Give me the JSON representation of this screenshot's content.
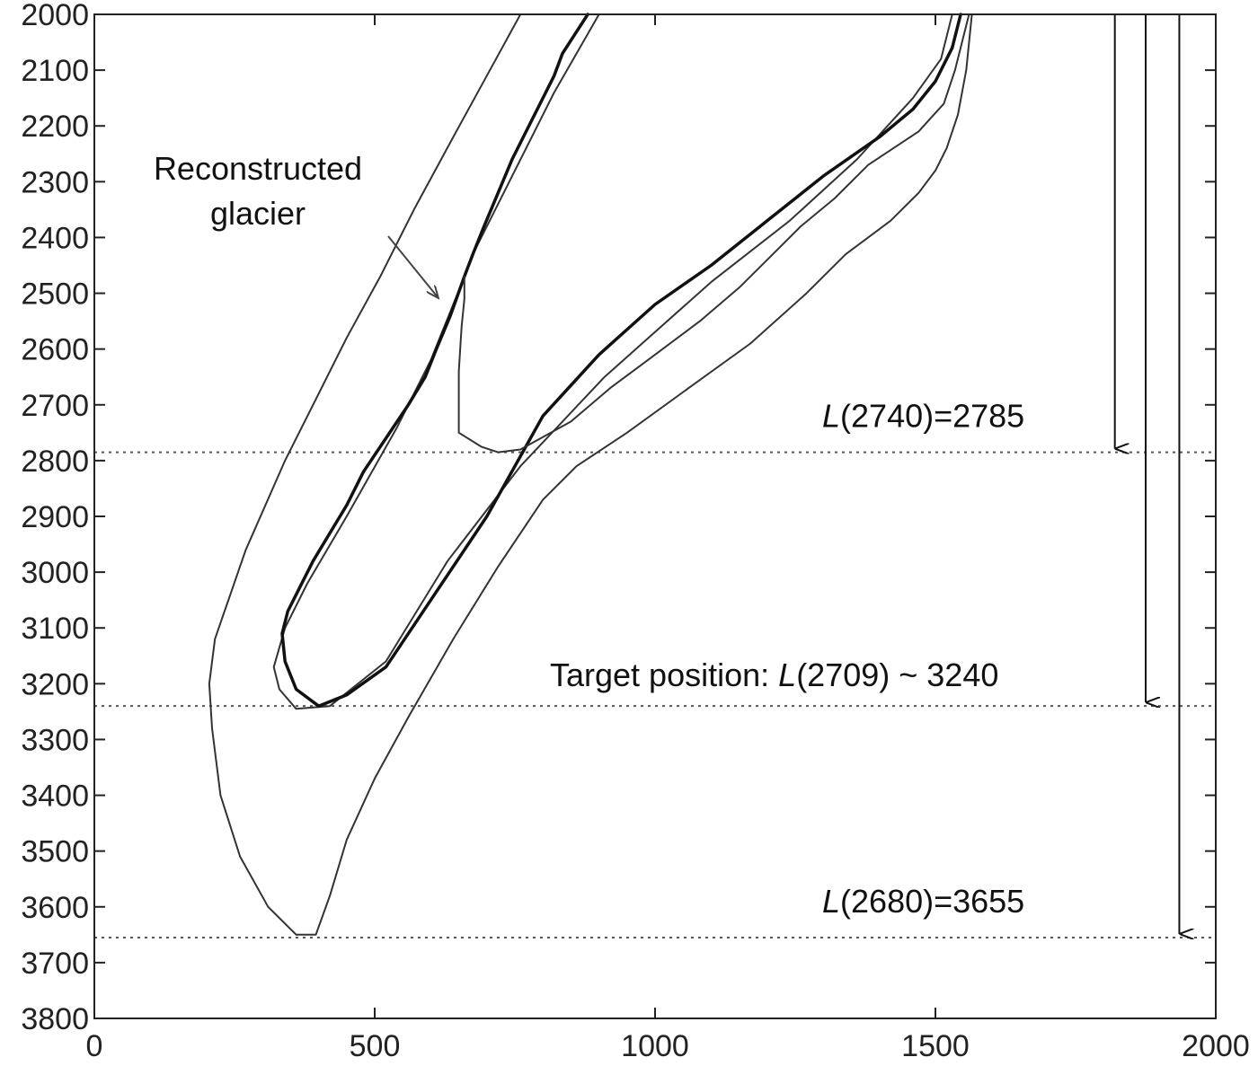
{
  "chart_data": {
    "type": "line",
    "xlim": [
      0,
      2000
    ],
    "ylim": [
      3800,
      2000
    ],
    "y_reversed": true,
    "grid": false,
    "x_ticks": [
      0,
      500,
      1000,
      1500,
      2000
    ],
    "y_ticks": [
      2000,
      2100,
      2200,
      2300,
      2400,
      2500,
      2600,
      2700,
      2800,
      2900,
      3000,
      3100,
      3200,
      3300,
      3400,
      3500,
      3600,
      3700,
      3800
    ],
    "series": [
      {
        "style": "thin",
        "points": [
          [
            900,
            2000
          ],
          [
            820,
            2140
          ],
          [
            740,
            2300
          ],
          [
            680,
            2420
          ],
          [
            640,
            2520
          ],
          [
            600,
            2620
          ],
          [
            540,
            2740
          ],
          [
            450,
            2900
          ],
          [
            380,
            3020
          ],
          [
            340,
            3100
          ],
          [
            320,
            3170
          ],
          [
            330,
            3210
          ],
          [
            360,
            3245
          ],
          [
            420,
            3240
          ],
          [
            520,
            3160
          ],
          [
            630,
            2980
          ],
          [
            760,
            2810
          ],
          [
            910,
            2650
          ],
          [
            1100,
            2480
          ],
          [
            1240,
            2370
          ],
          [
            1360,
            2260
          ],
          [
            1460,
            2150
          ],
          [
            1510,
            2080
          ],
          [
            1530,
            2000
          ]
        ]
      },
      {
        "style": "thick",
        "points": [
          [
            880,
            2000
          ],
          [
            835,
            2070
          ],
          [
            820,
            2110
          ],
          [
            795,
            2160
          ],
          [
            770,
            2210
          ],
          [
            745,
            2260
          ],
          [
            720,
            2320
          ],
          [
            695,
            2380
          ],
          [
            675,
            2430
          ],
          [
            660,
            2470
          ],
          [
            635,
            2540
          ],
          [
            610,
            2600
          ],
          [
            590,
            2650
          ],
          [
            560,
            2700
          ],
          [
            520,
            2760
          ],
          [
            480,
            2820
          ],
          [
            450,
            2880
          ],
          [
            420,
            2930
          ],
          [
            390,
            2980
          ],
          [
            365,
            3030
          ],
          [
            345,
            3070
          ],
          [
            335,
            3110
          ],
          [
            340,
            3160
          ],
          [
            360,
            3210
          ],
          [
            400,
            3240
          ],
          [
            450,
            3220
          ],
          [
            520,
            3170
          ],
          [
            600,
            3050
          ],
          [
            700,
            2900
          ],
          [
            800,
            2720
          ],
          [
            900,
            2610
          ],
          [
            1000,
            2520
          ],
          [
            1100,
            2450
          ],
          [
            1200,
            2370
          ],
          [
            1300,
            2290
          ],
          [
            1400,
            2220
          ],
          [
            1460,
            2170
          ],
          [
            1500,
            2120
          ],
          [
            1530,
            2060
          ],
          [
            1545,
            2000
          ]
        ]
      },
      {
        "style": "thin",
        "points": [
          [
            760,
            2000
          ],
          [
            700,
            2110
          ],
          [
            640,
            2220
          ],
          [
            570,
            2350
          ],
          [
            510,
            2470
          ],
          [
            450,
            2580
          ],
          [
            400,
            2680
          ],
          [
            340,
            2800
          ],
          [
            270,
            2960
          ],
          [
            215,
            3120
          ],
          [
            205,
            3200
          ],
          [
            210,
            3280
          ],
          [
            225,
            3400
          ],
          [
            260,
            3510
          ],
          [
            310,
            3600
          ],
          [
            360,
            3650
          ],
          [
            395,
            3650
          ],
          [
            420,
            3580
          ],
          [
            450,
            3480
          ],
          [
            500,
            3370
          ],
          [
            560,
            3260
          ],
          [
            640,
            3120
          ],
          [
            720,
            2990
          ],
          [
            800,
            2870
          ],
          [
            860,
            2810
          ],
          [
            950,
            2750
          ],
          [
            1060,
            2670
          ],
          [
            1170,
            2590
          ],
          [
            1270,
            2500
          ],
          [
            1340,
            2430
          ],
          [
            1420,
            2370
          ],
          [
            1470,
            2320
          ],
          [
            1500,
            2280
          ],
          [
            1520,
            2240
          ],
          [
            1540,
            2180
          ],
          [
            1555,
            2100
          ],
          [
            1565,
            2000
          ]
        ]
      },
      {
        "style": "thin",
        "points": [
          [
            1560,
            2000
          ],
          [
            1535,
            2100
          ],
          [
            1515,
            2160
          ],
          [
            1470,
            2210
          ],
          [
            1380,
            2270
          ],
          [
            1320,
            2330
          ],
          [
            1260,
            2380
          ],
          [
            1200,
            2440
          ],
          [
            1150,
            2490
          ],
          [
            1080,
            2550
          ],
          [
            1000,
            2610
          ],
          [
            920,
            2670
          ],
          [
            850,
            2730
          ],
          [
            760,
            2780
          ],
          [
            720,
            2785
          ],
          [
            690,
            2775
          ],
          [
            650,
            2750
          ],
          [
            650,
            2700
          ],
          [
            650,
            2640
          ],
          [
            655,
            2560
          ],
          [
            660,
            2510
          ],
          [
            660,
            2470
          ]
        ]
      }
    ],
    "reference_lines": [
      {
        "y": 2785,
        "label_func": "L",
        "label_arg": "(2740)",
        "label_rest": "=2785",
        "arrow_x": 1820
      },
      {
        "y": 3240,
        "label_prefix": "Target position:  ",
        "label_func": "L",
        "label_arg": "(2709)",
        "label_rest": " ~ 3240",
        "arrow_x": 1875
      },
      {
        "y": 3655,
        "label_func": "L",
        "label_arg": "(2680)",
        "label_rest": "=3655",
        "arrow_x": 1935
      }
    ],
    "annotation": {
      "line1": "Reconstructed",
      "line2": "glacier",
      "points_to": [
        620,
        2515
      ]
    }
  }
}
